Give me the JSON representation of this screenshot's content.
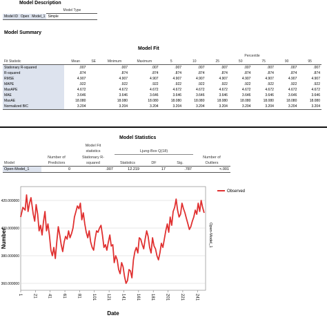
{
  "model_description": {
    "title": "Model Description",
    "col_header": "Model Type",
    "row_label": "Model ID",
    "row_name": "Open",
    "model": "Model_1",
    "type": "Simple"
  },
  "model_summary": {
    "title": "Model Summary"
  },
  "model_fit": {
    "title": "Model Fit",
    "percentile_header": "Percentile",
    "columns": [
      "Fit Statistic",
      "Mean",
      "SE",
      "Minimum",
      "Maximum",
      "5",
      "10",
      "25",
      "50",
      "75",
      "90",
      "95"
    ],
    "rows": [
      {
        "stat": "Stationary R-squared",
        "values": [
          ".007",
          "",
          ".007",
          ".007",
          ".007",
          ".007",
          ".007",
          ".007",
          ".007",
          ".007",
          ".007"
        ]
      },
      {
        "stat": "R-squared",
        "values": [
          ".874",
          "",
          ".874",
          ".874",
          ".874",
          ".874",
          ".874",
          ".874",
          ".874",
          ".874",
          ".874"
        ]
      },
      {
        "stat": "RMSE",
        "values": [
          "4.907",
          "",
          "4.907",
          "4.907",
          "4.907",
          "4.907",
          "4.907",
          "4.907",
          "4.907",
          "4.907",
          "4.907"
        ]
      },
      {
        "stat": "MAPE",
        "values": [
          ".922",
          "",
          ".922",
          ".922",
          ".922",
          ".922",
          ".922",
          ".922",
          ".922",
          ".922",
          ".922"
        ]
      },
      {
        "stat": "MaxAPE",
        "values": [
          "4.672",
          "",
          "4.672",
          "4.672",
          "4.672",
          "4.672",
          "4.672",
          "4.672",
          "4.672",
          "4.672",
          "4.672"
        ]
      },
      {
        "stat": "MAE",
        "values": [
          "3.646",
          "",
          "3.646",
          "3.646",
          "3.646",
          "3.646",
          "3.646",
          "3.646",
          "3.646",
          "3.646",
          "3.646"
        ]
      },
      {
        "stat": "MaxAE",
        "values": [
          "18.080",
          "",
          "18.080",
          "18.080",
          "18.080",
          "18.080",
          "18.080",
          "18.080",
          "18.080",
          "18.080",
          "18.080"
        ]
      },
      {
        "stat": "Normalized BIC",
        "values": [
          "3.204",
          "",
          "3.204",
          "3.204",
          "3.204",
          "3.204",
          "3.204",
          "3.204",
          "3.204",
          "3.204",
          "3.204"
        ]
      }
    ]
  },
  "model_statistics": {
    "title": "Model Statistics",
    "h_model": "Model",
    "h_predictors_1": "Number of",
    "h_predictors_2": "Predictors",
    "h_fit_1": "Model Fit",
    "h_fit_2": "statistics",
    "h_fit_3": "Stationary R-",
    "h_fit_4": "squared",
    "h_ljung": "Ljung-Box Q(18)",
    "h_statistics": "Statistics",
    "h_df": "DF",
    "h_sig": "Sig.",
    "h_outliers_1": "Number of",
    "h_outliers_2": "Outliers",
    "row": {
      "model": "Open-Model_1",
      "predictors": "0",
      "r2": ".007",
      "statistics": "12.219",
      "df": "17",
      "sig": ".787",
      "outliers": "<.001"
    }
  },
  "chart_data": {
    "type": "line",
    "xlabel": "Date",
    "ylabel": "Number",
    "right_label": "Open-Model_1",
    "legend": "Observed",
    "legend_position": "top-right",
    "series_color": "#e03030",
    "ylim": [
      355,
      430
    ],
    "yticks": [
      360,
      380,
      400,
      420
    ],
    "ytick_labels": [
      "360.000000",
      "380.000000",
      "400.000000",
      "420.000000"
    ],
    "xticks": [
      1,
      21,
      41,
      61,
      81,
      101,
      121,
      141,
      161,
      181,
      201,
      221,
      241
    ],
    "xtick_labels": [
      "1",
      "21",
      "41",
      "61",
      "81",
      "101",
      "121",
      "141",
      "161",
      "181",
      "201",
      "221",
      "241"
    ],
    "grid": true,
    "series": [
      {
        "name": "Observed",
        "x": [
          1,
          4,
          7,
          9,
          11,
          13,
          15,
          18,
          20,
          22,
          24,
          26,
          28,
          30,
          32,
          34,
          36,
          38,
          40,
          42,
          44,
          46,
          48,
          50,
          52,
          54,
          56,
          58,
          60,
          62,
          64,
          66,
          68,
          70,
          72,
          74,
          76,
          78,
          80,
          82,
          84,
          86,
          88,
          90,
          92,
          94,
          96,
          98,
          100,
          102,
          104,
          106,
          108,
          110,
          112,
          114,
          116,
          118,
          120,
          122,
          124,
          126,
          128,
          130,
          132,
          134,
          136,
          138,
          140,
          142,
          144,
          146,
          148,
          150,
          152,
          154,
          156,
          158,
          160,
          162,
          164,
          166,
          168,
          170,
          172,
          174,
          176,
          178,
          180,
          182,
          184,
          186,
          188,
          190,
          192,
          194,
          196,
          198,
          200,
          202,
          204,
          206,
          208,
          210,
          212,
          214,
          216,
          218,
          220,
          222,
          224,
          226,
          228,
          230,
          232,
          234,
          236,
          238,
          240,
          242,
          244,
          246,
          248,
          250
        ],
        "values": [
          408,
          415,
          413,
          424,
          412,
          418,
          422,
          410,
          405,
          417,
          410,
          398,
          402,
          395,
          405,
          412,
          398,
          403,
          395,
          384,
          380,
          386,
          378,
          390,
          401,
          395,
          388,
          383,
          390,
          394,
          392,
          398,
          393,
          396,
          400,
          408,
          412,
          416,
          414,
          418,
          406,
          411,
          403,
          397,
          393,
          398,
          390,
          386,
          384,
          392,
          398,
          397,
          400,
          402,
          395,
          386,
          388,
          384,
          390,
          395,
          387,
          388,
          375,
          380,
          377,
          370,
          367,
          375,
          372,
          365,
          360,
          362,
          370,
          369,
          364,
          377,
          383,
          386,
          382,
          393,
          392,
          388,
          385,
          392,
          398,
          394,
          386,
          382,
          393,
          387,
          385,
          380,
          377,
          382,
          389,
          386,
          392,
          398,
          403,
          397,
          408,
          402,
          412,
          415,
          421,
          413,
          408,
          410,
          418,
          414,
          411,
          407,
          403,
          399,
          401,
          405,
          408,
          413,
          410,
          418,
          412,
          420,
          415,
          411
        ]
      }
    ]
  }
}
